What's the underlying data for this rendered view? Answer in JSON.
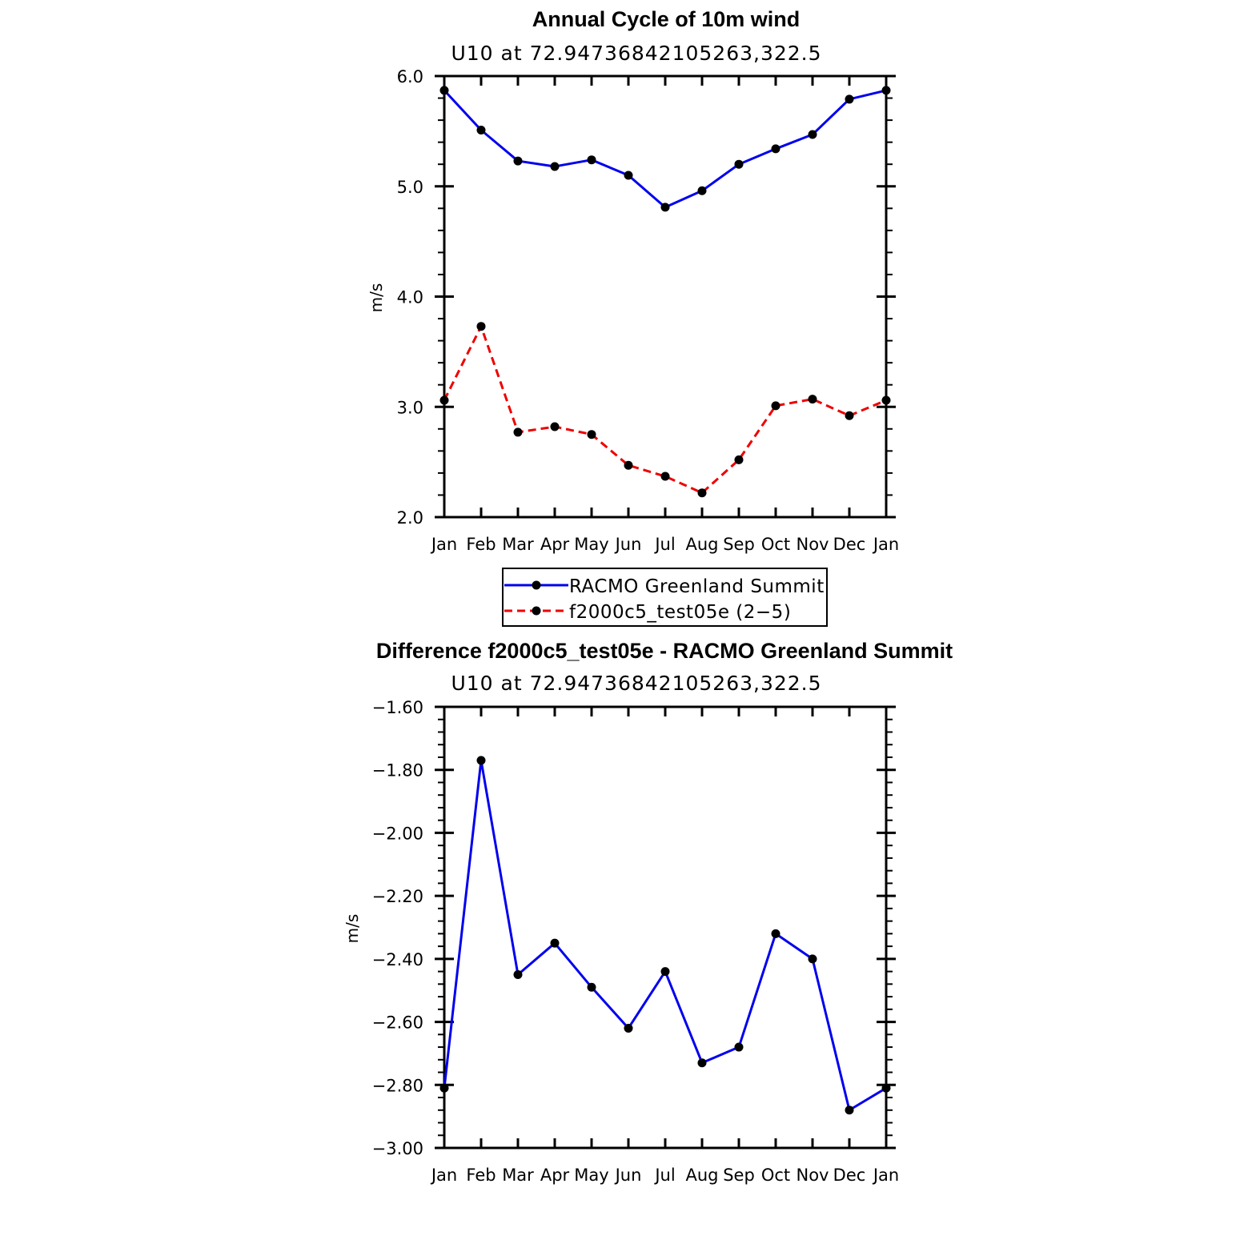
{
  "colors": {
    "series1": "#0000ee",
    "series2": "#ee0000",
    "marker": "#000000",
    "axis": "#000000"
  },
  "chart_data": [
    {
      "type": "line",
      "title": "Annual Cycle of 10m wind",
      "subtitle": "U10 at 72.94736842105263,322.5",
      "xlabel": "",
      "ylabel": "m/s",
      "categories": [
        "Jan",
        "Feb",
        "Mar",
        "Apr",
        "May",
        "Jun",
        "Jul",
        "Aug",
        "Sep",
        "Oct",
        "Nov",
        "Dec",
        "Jan"
      ],
      "ylim": [
        2.0,
        6.0
      ],
      "yticks": [
        "2.0",
        "3.0",
        "4.0",
        "5.0",
        "6.0"
      ],
      "ytick_values": [
        2.0,
        3.0,
        4.0,
        5.0,
        6.0
      ],
      "series": [
        {
          "name": "RACMO Greenland Summit",
          "style": "solid",
          "values": [
            5.87,
            5.51,
            5.23,
            5.18,
            5.24,
            5.1,
            4.81,
            4.96,
            5.2,
            5.34,
            5.47,
            5.79,
            5.87
          ]
        },
        {
          "name": "f2000c5_test05e (2-5)",
          "style": "dashed",
          "values": [
            3.06,
            3.73,
            2.77,
            2.82,
            2.75,
            2.47,
            2.37,
            2.22,
            2.52,
            3.01,
            3.07,
            2.92,
            3.06
          ]
        }
      ],
      "legend": [
        "RACMO Greenland Summit",
        "f2000c5_test05e (2−5)"
      ]
    },
    {
      "type": "line",
      "title": "Difference f2000c5_test05e - RACMO Greenland Summit",
      "subtitle": "U10 at 72.94736842105263,322.5",
      "xlabel": "",
      "ylabel": "m/s",
      "categories": [
        "Jan",
        "Feb",
        "Mar",
        "Apr",
        "May",
        "Jun",
        "Jul",
        "Aug",
        "Sep",
        "Oct",
        "Nov",
        "Dec",
        "Jan"
      ],
      "ylim": [
        -3.0,
        -1.6
      ],
      "yticks": [
        "−3.00",
        "−2.80",
        "−2.60",
        "−2.40",
        "−2.20",
        "−2.00",
        "−1.80",
        "−1.60"
      ],
      "ytick_values": [
        -3.0,
        -2.8,
        -2.6,
        -2.4,
        -2.2,
        -2.0,
        -1.8,
        -1.6
      ],
      "series": [
        {
          "name": "Difference",
          "style": "solid",
          "values": [
            -2.81,
            -1.77,
            -2.45,
            -2.35,
            -2.49,
            -2.62,
            -2.44,
            -2.73,
            -2.68,
            -2.32,
            -2.4,
            -2.88,
            -2.81
          ]
        }
      ]
    }
  ]
}
